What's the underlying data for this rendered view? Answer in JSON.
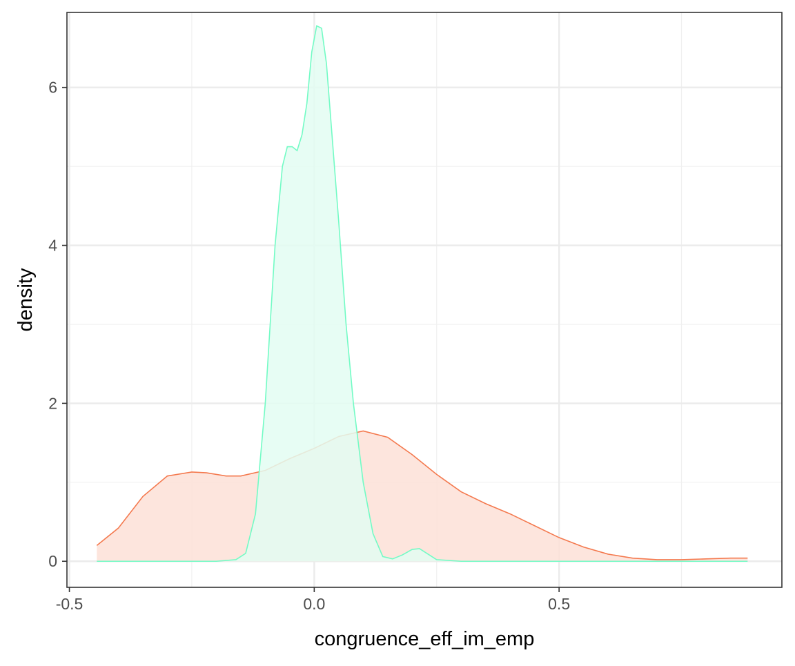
{
  "chart_data": {
    "type": "area",
    "title": "",
    "xlabel": "congruence_eff_im_emp",
    "ylabel": "density",
    "xlim": [
      -0.505,
      0.955
    ],
    "ylim": [
      -0.33,
      6.95
    ],
    "x_ticks": [
      -0.5,
      0.0,
      0.5
    ],
    "x_tick_labels": [
      "-0.5",
      "0.0",
      "0.5"
    ],
    "x_minor_ticks": [
      -0.25,
      0.25,
      0.75
    ],
    "y_ticks": [
      0,
      2,
      4,
      6
    ],
    "y_tick_labels": [
      "0",
      "2",
      "4",
      "6"
    ],
    "y_minor_ticks": [
      1,
      3,
      5
    ],
    "grid": true,
    "legend": "none",
    "series": [
      {
        "color": "#F4794E",
        "fill": "#FDE1D7",
        "x": [
          -0.444,
          -0.4,
          -0.35,
          -0.3,
          -0.25,
          -0.22,
          -0.18,
          -0.15,
          -0.1,
          -0.05,
          0.0,
          0.05,
          0.1,
          0.15,
          0.2,
          0.25,
          0.3,
          0.35,
          0.4,
          0.45,
          0.5,
          0.55,
          0.6,
          0.65,
          0.7,
          0.75,
          0.8,
          0.85,
          0.885
        ],
        "y": [
          0.2,
          0.42,
          0.82,
          1.08,
          1.13,
          1.12,
          1.08,
          1.08,
          1.15,
          1.3,
          1.43,
          1.58,
          1.65,
          1.57,
          1.35,
          1.1,
          0.88,
          0.73,
          0.6,
          0.45,
          0.3,
          0.18,
          0.09,
          0.04,
          0.02,
          0.02,
          0.03,
          0.04,
          0.04
        ]
      },
      {
        "color": "#73FBC5",
        "fill": "#E3FDF2",
        "x": [
          -0.444,
          -0.2,
          -0.16,
          -0.14,
          -0.12,
          -0.1,
          -0.08,
          -0.065,
          -0.055,
          -0.045,
          -0.035,
          -0.025,
          -0.015,
          -0.005,
          0.005,
          0.015,
          0.025,
          0.035,
          0.05,
          0.065,
          0.08,
          0.1,
          0.12,
          0.14,
          0.16,
          0.18,
          0.2,
          0.215,
          0.23,
          0.25,
          0.3,
          0.4,
          0.6,
          0.885
        ],
        "y": [
          0.0,
          0.0,
          0.02,
          0.1,
          0.6,
          2.0,
          4.0,
          5.0,
          5.25,
          5.25,
          5.2,
          5.4,
          5.8,
          6.45,
          6.78,
          6.75,
          6.3,
          5.5,
          4.3,
          3.0,
          2.0,
          1.0,
          0.35,
          0.06,
          0.03,
          0.08,
          0.15,
          0.16,
          0.1,
          0.02,
          0.0,
          0.0,
          0.0,
          0.0
        ]
      }
    ]
  }
}
